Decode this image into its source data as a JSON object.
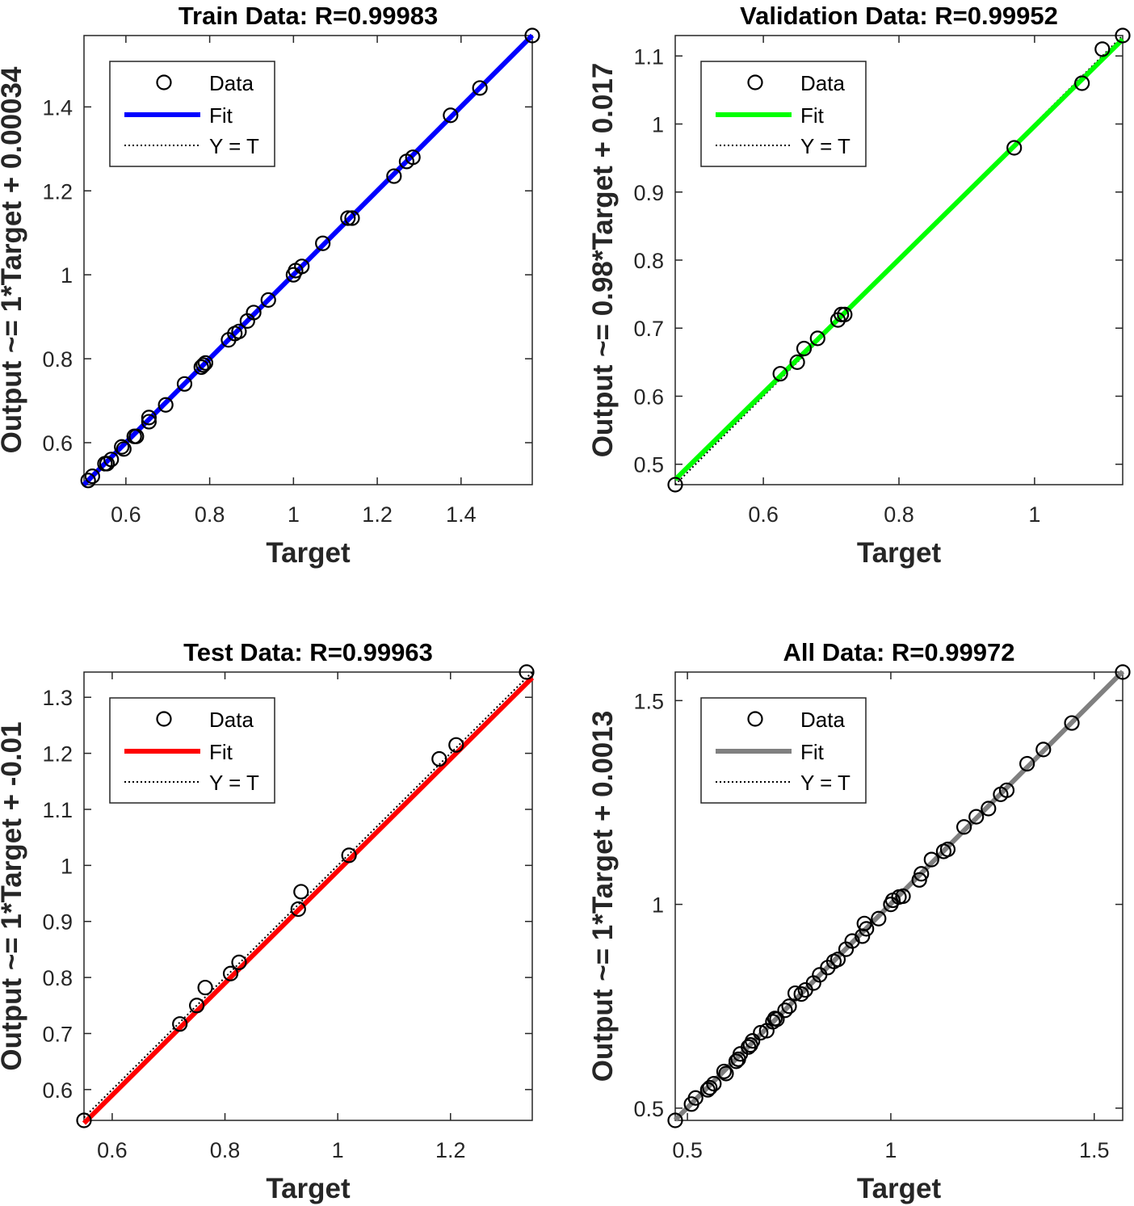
{
  "chart_data": [
    {
      "type": "scatter",
      "title": "Train Data: R=0.99983",
      "xlabel": "Target",
      "ylabel": "Output ~= 1*Target + 0.00034",
      "xlim": [
        0.5,
        1.57
      ],
      "ylim": [
        0.5,
        1.57
      ],
      "xticks": [
        0.6,
        0.8,
        1,
        1.2,
        1.4
      ],
      "yticks": [
        0.6,
        0.8,
        1,
        1.2,
        1.4
      ],
      "xtick_labels": [
        "0.6",
        "0.8",
        "1",
        "1.2",
        "1.4"
      ],
      "ytick_labels": [
        "0.6",
        "0.8",
        "1",
        "1.2",
        "1.4"
      ],
      "fit": {
        "slope": 1,
        "intercept": 0.00034,
        "color": "#0000ff"
      },
      "legend": {
        "placement": "top-left",
        "entries": [
          "Data",
          "Fit",
          "Y = T"
        ]
      },
      "points": [
        [
          0.51,
          0.51
        ],
        [
          0.52,
          0.52
        ],
        [
          0.55,
          0.55
        ],
        [
          0.555,
          0.55
        ],
        [
          0.565,
          0.56
        ],
        [
          0.59,
          0.59
        ],
        [
          0.595,
          0.585
        ],
        [
          0.62,
          0.615
        ],
        [
          0.625,
          0.615
        ],
        [
          0.655,
          0.65
        ],
        [
          0.655,
          0.66
        ],
        [
          0.695,
          0.69
        ],
        [
          0.74,
          0.74
        ],
        [
          0.78,
          0.78
        ],
        [
          0.785,
          0.785
        ],
        [
          0.79,
          0.79
        ],
        [
          0.845,
          0.845
        ],
        [
          0.86,
          0.86
        ],
        [
          0.87,
          0.865
        ],
        [
          0.89,
          0.89
        ],
        [
          0.905,
          0.91
        ],
        [
          0.94,
          0.94
        ],
        [
          1.0,
          1.0
        ],
        [
          1.005,
          1.01
        ],
        [
          1.02,
          1.02
        ],
        [
          1.07,
          1.075
        ],
        [
          1.13,
          1.135
        ],
        [
          1.14,
          1.135
        ],
        [
          1.24,
          1.235
        ],
        [
          1.27,
          1.27
        ],
        [
          1.285,
          1.28
        ],
        [
          1.375,
          1.38
        ],
        [
          1.445,
          1.445
        ],
        [
          1.57,
          1.57
        ]
      ]
    },
    {
      "type": "scatter",
      "title": "Validation Data: R=0.99952",
      "xlabel": "Target",
      "ylabel": "Output ~= 0.98*Target + 0.017",
      "xlim": [
        0.47,
        1.13
      ],
      "ylim": [
        0.47,
        1.13
      ],
      "xticks": [
        0.6,
        0.8,
        1
      ],
      "yticks": [
        0.5,
        0.6,
        0.7,
        0.8,
        0.9,
        1,
        1.1
      ],
      "xtick_labels": [
        "0.6",
        "0.8",
        "1"
      ],
      "ytick_labels": [
        "0.5",
        "0.6",
        "0.7",
        "0.8",
        "0.9",
        "1",
        "1.1"
      ],
      "fit": {
        "slope": 0.98,
        "intercept": 0.017,
        "color": "#00ff00"
      },
      "legend": {
        "placement": "top-left",
        "entries": [
          "Data",
          "Fit",
          "Y = T"
        ]
      },
      "points": [
        [
          0.47,
          0.47
        ],
        [
          0.625,
          0.633
        ],
        [
          0.65,
          0.65
        ],
        [
          0.66,
          0.67
        ],
        [
          0.68,
          0.685
        ],
        [
          0.71,
          0.712
        ],
        [
          0.715,
          0.72
        ],
        [
          0.72,
          0.72
        ],
        [
          0.97,
          0.965
        ],
        [
          1.07,
          1.06
        ],
        [
          1.1,
          1.11
        ],
        [
          1.13,
          1.13
        ]
      ]
    },
    {
      "type": "scatter",
      "title": "Test Data: R=0.99963",
      "xlabel": "Target",
      "ylabel": "Output ~= 1*Target + -0.01",
      "xlim": [
        0.55,
        1.345
      ],
      "ylim": [
        0.545,
        1.345
      ],
      "xticks": [
        0.6,
        0.8,
        1,
        1.2
      ],
      "yticks": [
        0.6,
        0.7,
        0.8,
        0.9,
        1,
        1.1,
        1.2,
        1.3
      ],
      "xtick_labels": [
        "0.6",
        "0.8",
        "1",
        "1.2"
      ],
      "ytick_labels": [
        "0.6",
        "0.7",
        "0.8",
        "0.9",
        "1",
        "1.1",
        "1.2",
        "1.3"
      ],
      "fit": {
        "slope": 1,
        "intercept": -0.01,
        "color": "#ff0000"
      },
      "legend": {
        "placement": "top-left",
        "entries": [
          "Data",
          "Fit",
          "Y = T"
        ]
      },
      "points": [
        [
          0.55,
          0.545
        ],
        [
          0.72,
          0.717
        ],
        [
          0.75,
          0.75
        ],
        [
          0.765,
          0.782
        ],
        [
          0.81,
          0.807
        ],
        [
          0.825,
          0.827
        ],
        [
          0.93,
          0.922
        ],
        [
          0.935,
          0.953
        ],
        [
          1.02,
          1.018
        ],
        [
          1.18,
          1.19
        ],
        [
          1.21,
          1.215
        ],
        [
          1.335,
          1.345
        ]
      ]
    },
    {
      "type": "scatter",
      "title": "All Data: R=0.99972",
      "xlabel": "Target",
      "ylabel": "Output ~= 1*Target + 0.0013",
      "xlim": [
        0.47,
        1.57
      ],
      "ylim": [
        0.47,
        1.57
      ],
      "xticks": [
        0.5,
        1,
        1.5
      ],
      "yticks": [
        0.5,
        1,
        1.5
      ],
      "xtick_labels": [
        "0.5",
        "1",
        "1.5"
      ],
      "ytick_labels": [
        "0.5",
        "1",
        "1.5"
      ],
      "fit": {
        "slope": 1,
        "intercept": 0.0013,
        "color": "#808080"
      },
      "legend": {
        "placement": "top-left",
        "entries": [
          "Data",
          "Fit",
          "Y = T"
        ]
      },
      "points": [
        [
          0.47,
          0.47
        ],
        [
          0.51,
          0.51
        ],
        [
          0.52,
          0.525
        ],
        [
          0.55,
          0.545
        ],
        [
          0.555,
          0.55
        ],
        [
          0.565,
          0.56
        ],
        [
          0.59,
          0.59
        ],
        [
          0.595,
          0.585
        ],
        [
          0.62,
          0.615
        ],
        [
          0.625,
          0.62
        ],
        [
          0.63,
          0.633
        ],
        [
          0.65,
          0.65
        ],
        [
          0.655,
          0.655
        ],
        [
          0.66,
          0.665
        ],
        [
          0.68,
          0.685
        ],
        [
          0.695,
          0.69
        ],
        [
          0.71,
          0.712
        ],
        [
          0.715,
          0.72
        ],
        [
          0.72,
          0.718
        ],
        [
          0.74,
          0.74
        ],
        [
          0.75,
          0.75
        ],
        [
          0.765,
          0.782
        ],
        [
          0.78,
          0.78
        ],
        [
          0.79,
          0.79
        ],
        [
          0.81,
          0.807
        ],
        [
          0.825,
          0.827
        ],
        [
          0.845,
          0.845
        ],
        [
          0.86,
          0.86
        ],
        [
          0.87,
          0.865
        ],
        [
          0.89,
          0.89
        ],
        [
          0.905,
          0.91
        ],
        [
          0.93,
          0.922
        ],
        [
          0.935,
          0.953
        ],
        [
          0.94,
          0.94
        ],
        [
          0.97,
          0.965
        ],
        [
          1.0,
          1.0
        ],
        [
          1.005,
          1.01
        ],
        [
          1.02,
          1.018
        ],
        [
          1.03,
          1.02
        ],
        [
          1.07,
          1.06
        ],
        [
          1.075,
          1.075
        ],
        [
          1.1,
          1.11
        ],
        [
          1.13,
          1.13
        ],
        [
          1.14,
          1.135
        ],
        [
          1.18,
          1.19
        ],
        [
          1.21,
          1.215
        ],
        [
          1.24,
          1.235
        ],
        [
          1.27,
          1.27
        ],
        [
          1.285,
          1.28
        ],
        [
          1.335,
          1.345
        ],
        [
          1.375,
          1.38
        ],
        [
          1.445,
          1.445
        ],
        [
          1.57,
          1.57
        ]
      ]
    }
  ]
}
